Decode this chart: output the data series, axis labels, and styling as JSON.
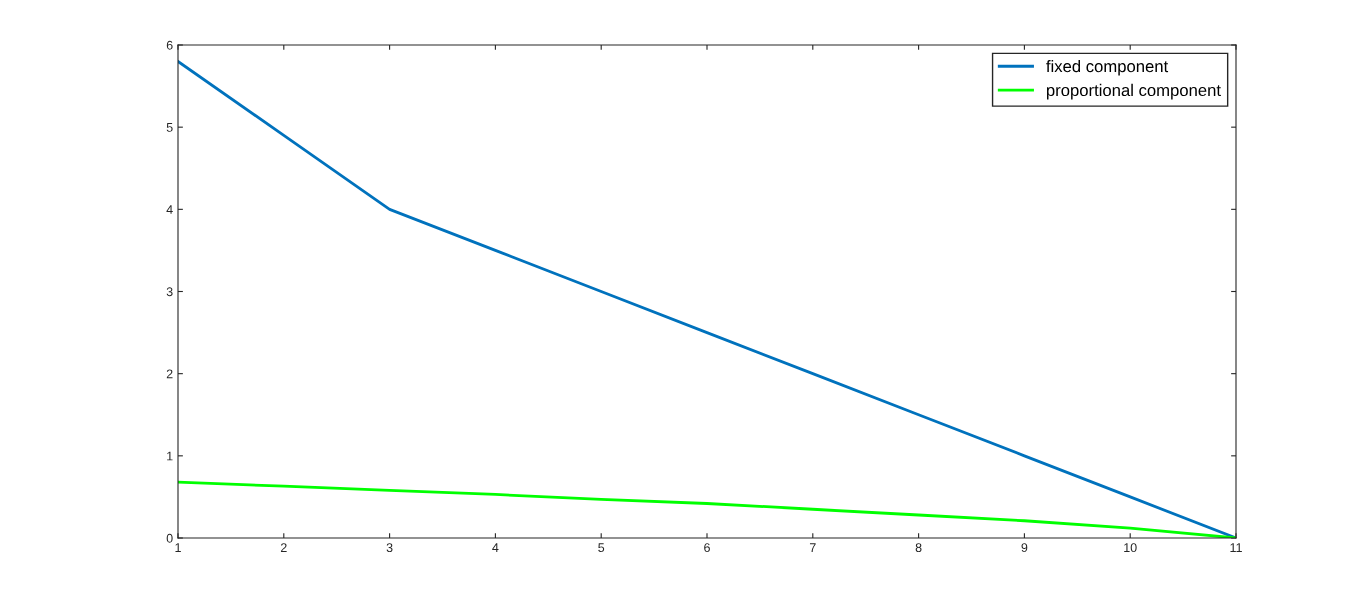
{
  "chart_data": {
    "type": "line",
    "x": [
      1,
      2,
      3,
      4,
      5,
      6,
      7,
      8,
      9,
      10,
      11
    ],
    "series": [
      {
        "name": "fixed component",
        "color": "#0072bd",
        "values": [
          5.8,
          4.9,
          4.0,
          3.5,
          3.0,
          2.5,
          2.0,
          1.5,
          1.0,
          0.5,
          0
        ]
      },
      {
        "name": "proportional component",
        "color": "#00ff00",
        "values": [
          0.68,
          0.63,
          0.58,
          0.53,
          0.47,
          0.42,
          0.35,
          0.28,
          0.21,
          0.12,
          0
        ]
      }
    ],
    "xlim": [
      1,
      11
    ],
    "xticks": [
      1,
      2,
      3,
      4,
      5,
      6,
      7,
      8,
      9,
      10,
      11
    ],
    "ylim": [
      0,
      6
    ],
    "yticks": [
      0,
      1,
      2,
      3,
      4,
      5,
      6
    ],
    "grid": false,
    "legend": "top right",
    "marker": "none",
    "line_style": "solid"
  }
}
